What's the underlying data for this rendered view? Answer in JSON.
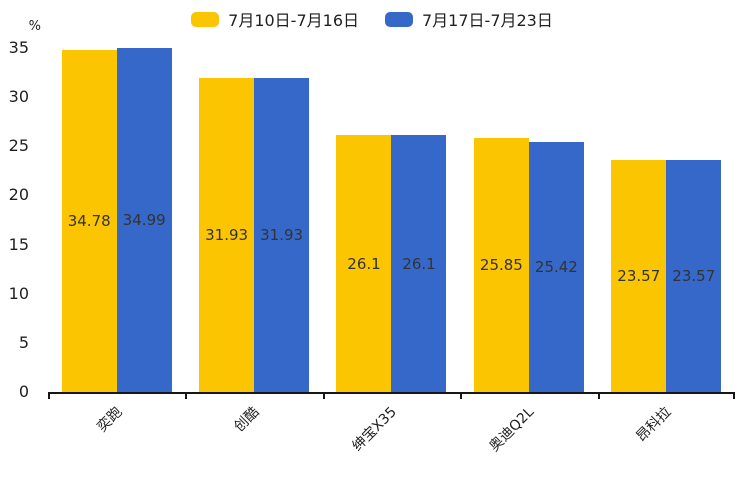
{
  "chart_data": {
    "type": "bar",
    "title": "",
    "categories": [
      "奕跑",
      "创酷",
      "绅宝X35",
      "奥迪Q2L",
      "昂科拉"
    ],
    "series": [
      {
        "name": "7月10日-7月16日",
        "color": "#FCC502",
        "values": [
          34.78,
          31.93,
          26.1,
          25.85,
          23.57
        ]
      },
      {
        "name": "7月17日-7月23日",
        "color": "#3668C9",
        "values": [
          34.99,
          31.93,
          26.1,
          25.42,
          23.57
        ]
      }
    ],
    "xlabel": "",
    "ylabel": "%",
    "ylim": [
      0,
      35
    ],
    "yticks": [
      0,
      5,
      10,
      15,
      20,
      25,
      30,
      35
    ],
    "grid": false,
    "legend_position": "top",
    "data_labels": "inside-center",
    "xlabel_rotation": 45
  },
  "colors": {
    "background": "#ffffff",
    "axis": "#161616",
    "tick_text": "#1f1f1f",
    "bar_label_text": "#333333"
  }
}
